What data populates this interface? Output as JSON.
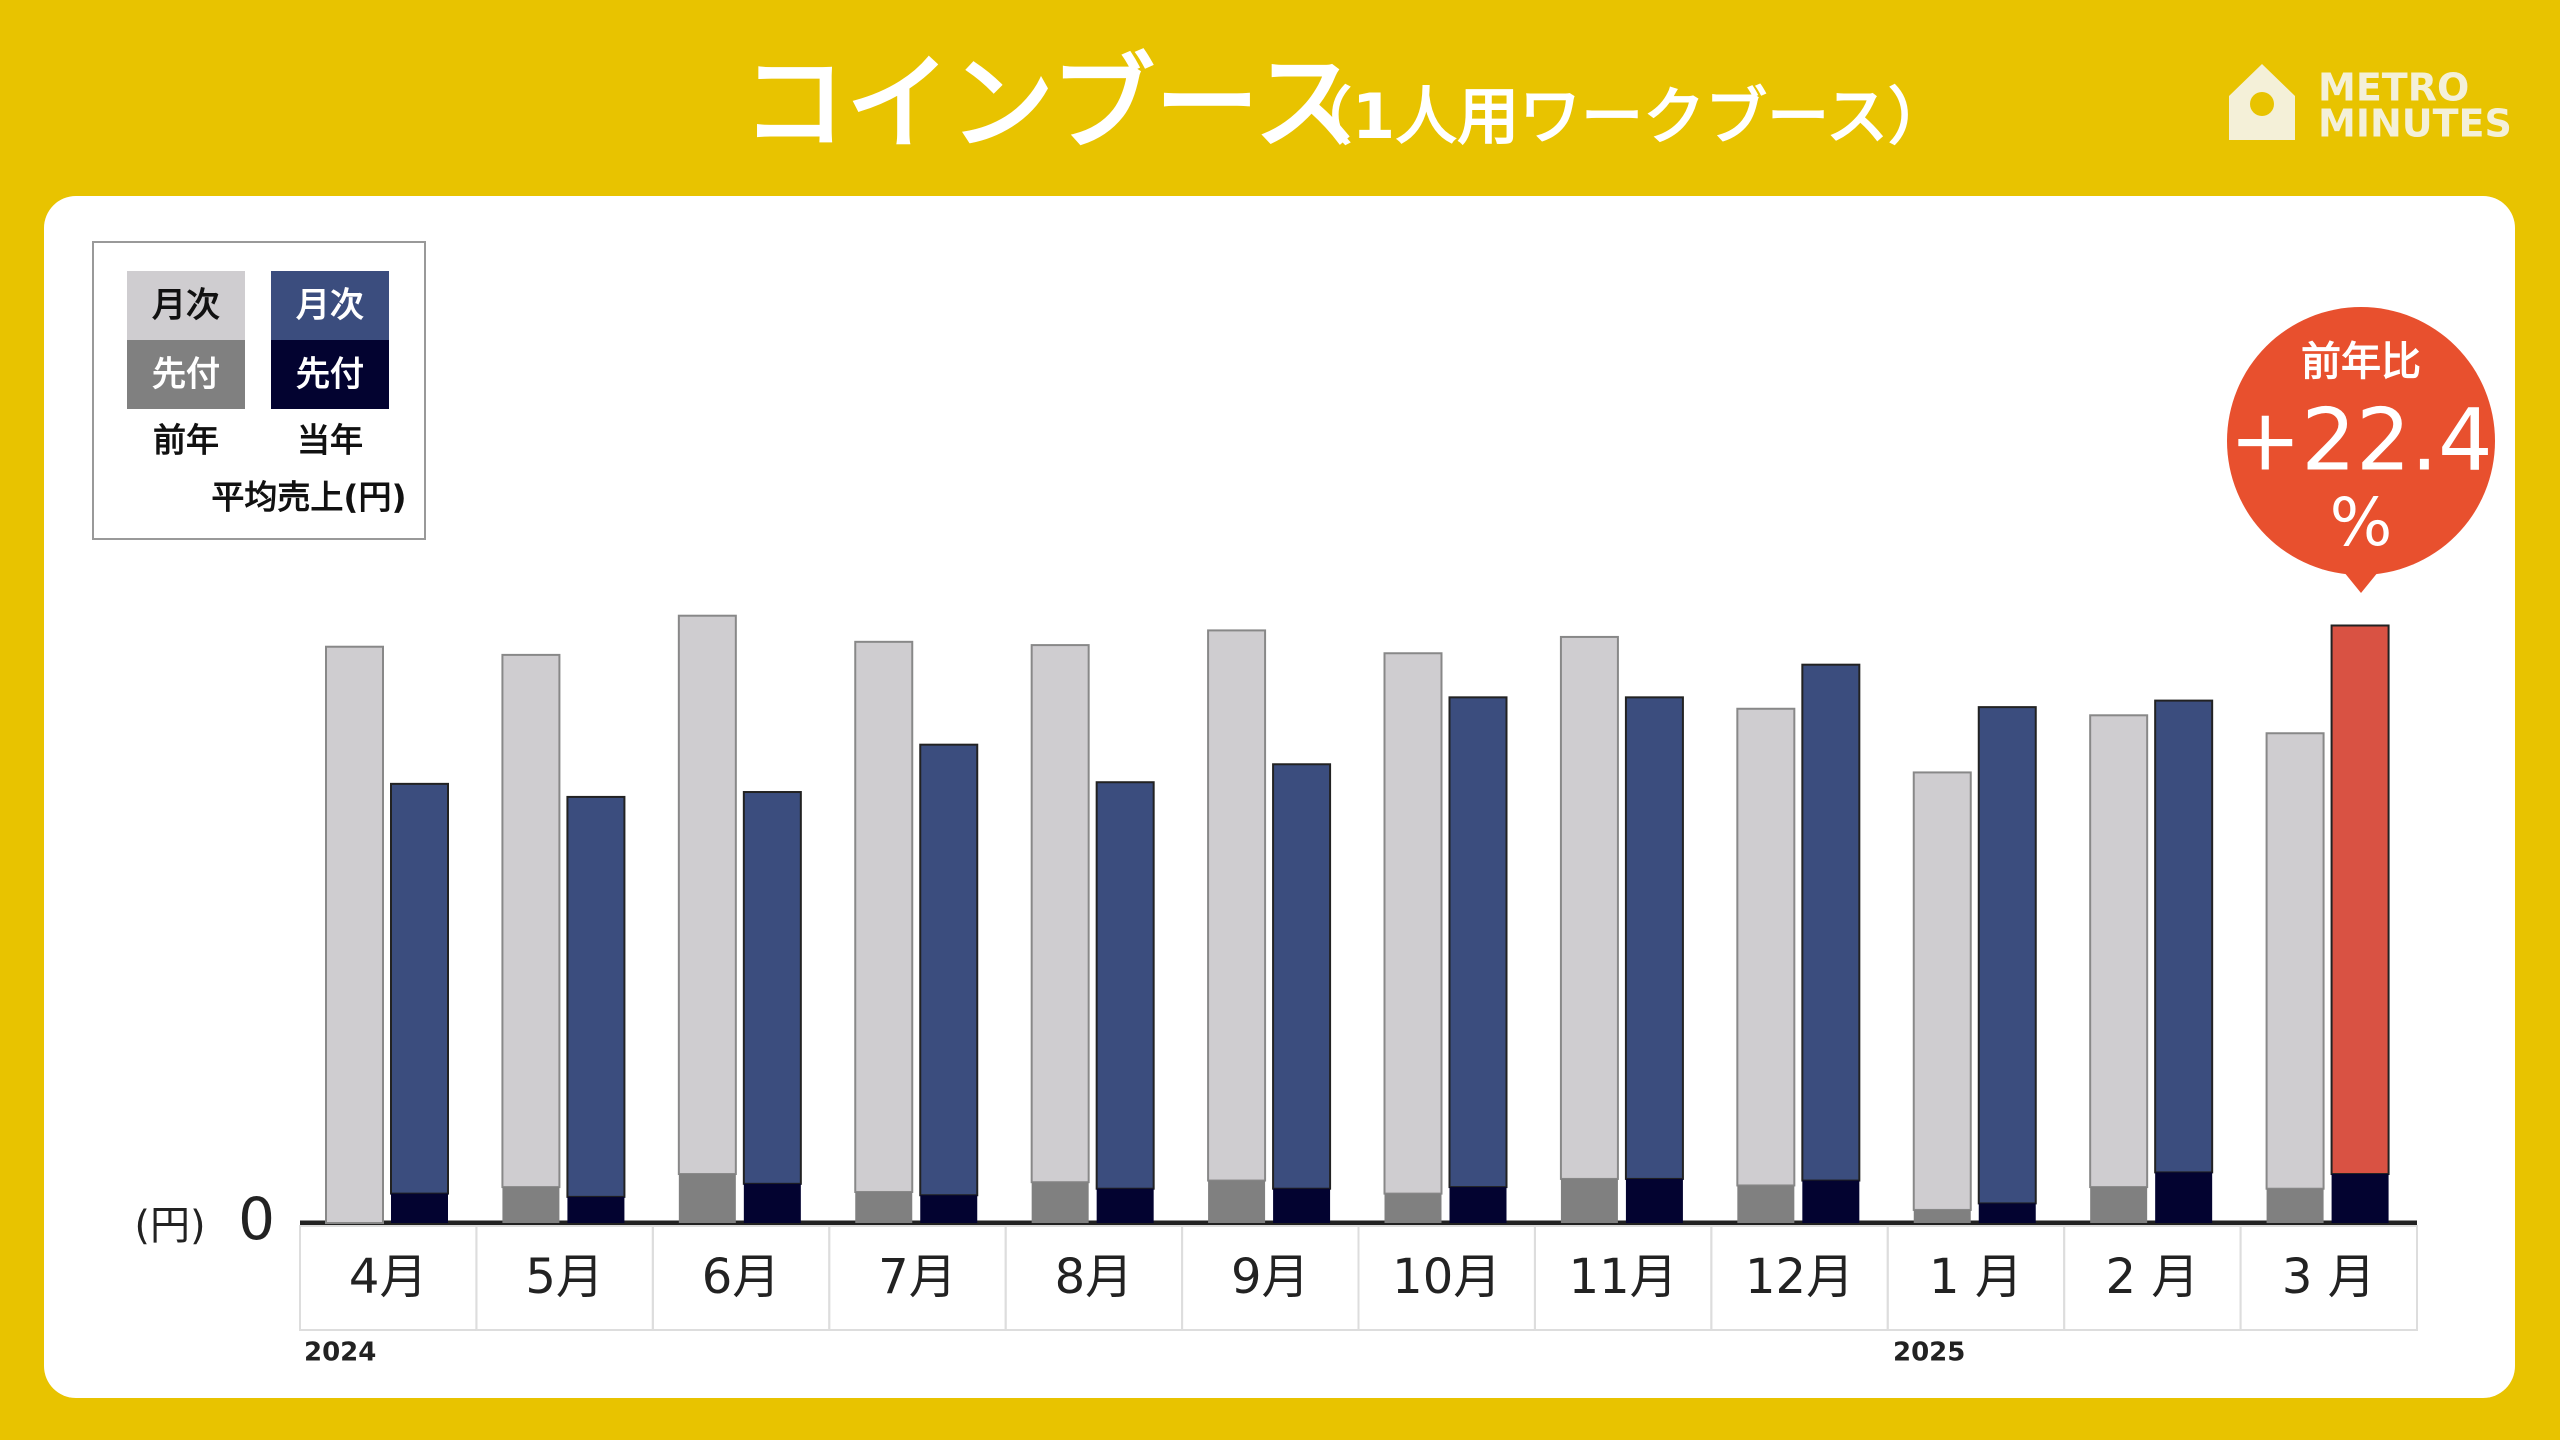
{
  "chart_data": {
    "type": "stacked_grouped_bar",
    "title": "コインブース",
    "subtitle": "（1人用ワークブース）",
    "logo": [
      "METRO",
      "MINUTES"
    ],
    "legend_title": "平均売上(円)",
    "y_label": "(円)",
    "categories": [
      "4月",
      "5月",
      "6月",
      "7月",
      "8月",
      "9月",
      "10月",
      "11月",
      "12月",
      "1 月",
      "2 月",
      "3 月"
    ],
    "years": [
      "2024",
      "2025"
    ],
    "ylim": [
      0,
      400
    ],
    "yticks": [
      0
    ],
    "series": [
      {
        "name": "月次",
        "group": "前年",
        "part": "monthly",
        "color": "#cfcdd0",
        "values": [
          353,
          326,
          342,
          337,
          329,
          337,
          331,
          332,
          292,
          268,
          289,
          279
        ]
      },
      {
        "name": "先付",
        "group": "前年",
        "part": "advance",
        "color": "#808080",
        "values": [
          0,
          22,
          30,
          19,
          25,
          26,
          18,
          27,
          23,
          8,
          22,
          21
        ]
      },
      {
        "name": "月次",
        "group": "当年",
        "part": "monthly",
        "color": "#3b4d7e",
        "highlight_index": 11,
        "highlight_color": "#d95243",
        "values": [
          251,
          245,
          240,
          276,
          249,
          260,
          300,
          295,
          316,
          304,
          289,
          336
        ]
      },
      {
        "name": "先付",
        "group": "当年",
        "part": "advance",
        "color": "#030330",
        "values": [
          18,
          16,
          24,
          17,
          21,
          21,
          22,
          27,
          26,
          12,
          31,
          30
        ]
      }
    ],
    "annotation": {
      "title": "前年比",
      "value_label": "+22.4",
      "unit": "%",
      "color": "#e8502e"
    }
  }
}
